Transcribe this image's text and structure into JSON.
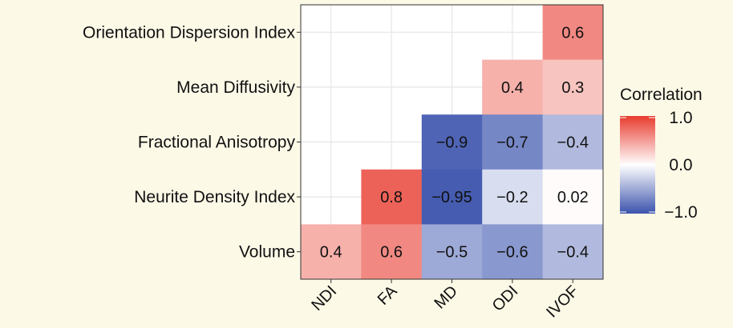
{
  "chart_data": {
    "type": "heatmap",
    "title": "",
    "xlabel": "",
    "ylabel": "",
    "x_categories": [
      "NDI",
      "FA",
      "MD",
      "ODI",
      "IVOF"
    ],
    "y_categories": [
      "Orientation Dispersion Index",
      "Mean Diffusivity",
      "Fractional Anisotropy",
      "Neurite Density Index",
      "Volume"
    ],
    "cells": [
      {
        "x": "IVOF",
        "y": "Orientation Dispersion Index",
        "value": 0.6,
        "label": "0.6"
      },
      {
        "x": "ODI",
        "y": "Mean Diffusivity",
        "value": 0.4,
        "label": "0.4"
      },
      {
        "x": "IVOF",
        "y": "Mean Diffusivity",
        "value": 0.3,
        "label": "0.3"
      },
      {
        "x": "MD",
        "y": "Fractional Anisotropy",
        "value": -0.9,
        "label": "−0.9"
      },
      {
        "x": "ODI",
        "y": "Fractional Anisotropy",
        "value": -0.7,
        "label": "−0.7"
      },
      {
        "x": "IVOF",
        "y": "Fractional Anisotropy",
        "value": -0.4,
        "label": "−0.4"
      },
      {
        "x": "FA",
        "y": "Neurite Density Index",
        "value": 0.8,
        "label": "0.8"
      },
      {
        "x": "MD",
        "y": "Neurite Density Index",
        "value": -0.95,
        "label": "−0.95"
      },
      {
        "x": "ODI",
        "y": "Neurite Density Index",
        "value": -0.2,
        "label": "−0.2"
      },
      {
        "x": "IVOF",
        "y": "Neurite Density Index",
        "value": 0.02,
        "label": "0.02"
      },
      {
        "x": "NDI",
        "y": "Volume",
        "value": 0.4,
        "label": "0.4"
      },
      {
        "x": "FA",
        "y": "Volume",
        "value": 0.6,
        "label": "0.6"
      },
      {
        "x": "MD",
        "y": "Volume",
        "value": -0.5,
        "label": "−0.5"
      },
      {
        "x": "ODI",
        "y": "Volume",
        "value": -0.6,
        "label": "−0.6"
      },
      {
        "x": "IVOF",
        "y": "Volume",
        "value": -0.4,
        "label": "−0.4"
      }
    ],
    "color_scale": {
      "title": "Correlation",
      "min": -1.0,
      "max": 1.0,
      "ticks": [
        1.0,
        0.0,
        -1.0
      ],
      "tick_labels": [
        "1.0",
        "0.0",
        "−1.0"
      ],
      "low_color": "#3b53ad",
      "mid_color": "#ffffff",
      "high_color": "#e83b2e"
    },
    "grid": true,
    "legend_position": "right"
  }
}
